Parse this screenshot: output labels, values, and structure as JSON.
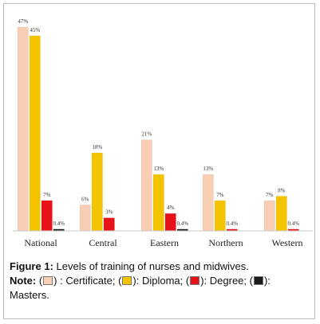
{
  "chart_data": {
    "type": "bar",
    "categories": [
      "National",
      "Central",
      "Eastern",
      "Northern",
      "Western"
    ],
    "series": [
      {
        "name": "Certificate",
        "values": [
          47,
          6,
          21,
          13,
          7
        ],
        "labels": [
          "47%",
          "6%",
          "21%",
          "13%",
          "7%"
        ],
        "color": "#f8cfb4"
      },
      {
        "name": "Diploma",
        "values": [
          45,
          18,
          13,
          7,
          8
        ],
        "labels": [
          "45%",
          "18%",
          "13%",
          "7%",
          "8%"
        ],
        "color": "#f5c400"
      },
      {
        "name": "Degree",
        "values": [
          7,
          3,
          4,
          0.4,
          0.4
        ],
        "labels": [
          "7%",
          "3%",
          "4%",
          "0.4%",
          "0.4%"
        ],
        "color": "#e8131a"
      },
      {
        "name": "Masters",
        "values": [
          0.4,
          0,
          0.4,
          0,
          0
        ],
        "labels": [
          "0.4%",
          "",
          "0.4%",
          "",
          ""
        ],
        "color": "#1a1a1a"
      }
    ],
    "ylim": [
      0,
      50
    ],
    "grid": false,
    "legend": "caption"
  },
  "caption": {
    "figure_label": "Figure 1:",
    "figure_text": " Levels of training of nurses and midwives.",
    "note_label": "Note:",
    "note_open1": " (",
    "note_certificate": ") : Certificate; (",
    "note_diploma": "): Diploma; (",
    "note_degree": "): Degree; (",
    "note_masters_tail": "): ",
    "note_masters_word": "Masters."
  }
}
